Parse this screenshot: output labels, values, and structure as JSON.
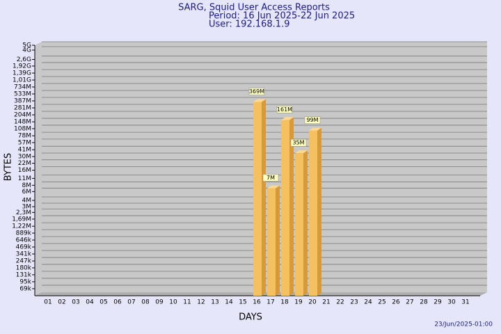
{
  "chart_data": {
    "type": "bar",
    "title": "SARG, Squid User Access Reports",
    "subtitle": "Period: 16 Jun 2025-22 Jun 2025",
    "user": "User: 192.168.1.9",
    "xlabel": "DAYS",
    "ylabel": "BYTES",
    "footer": "23/Jun/2025-01:00",
    "log_scale": true,
    "grid": true,
    "color": "#f5c060",
    "categories": [
      "01",
      "02",
      "03",
      "04",
      "05",
      "06",
      "07",
      "08",
      "09",
      "10",
      "11",
      "12",
      "13",
      "14",
      "15",
      "16",
      "17",
      "18",
      "19",
      "20",
      "21",
      "22",
      "23",
      "24",
      "25",
      "26",
      "27",
      "28",
      "29",
      "30",
      "31"
    ],
    "values": [
      null,
      null,
      null,
      null,
      null,
      null,
      null,
      null,
      null,
      null,
      null,
      null,
      null,
      null,
      null,
      369000000,
      7000000,
      161000000,
      35000000,
      99000000,
      null,
      null,
      null,
      null,
      null,
      null,
      null,
      null,
      null,
      null,
      null
    ],
    "value_labels": [
      null,
      null,
      null,
      null,
      null,
      null,
      null,
      null,
      null,
      null,
      null,
      null,
      null,
      null,
      null,
      "369M",
      "7M",
      "161M",
      "35M",
      "99M",
      null,
      null,
      null,
      null,
      null,
      null,
      null,
      null,
      null,
      null,
      null
    ],
    "ylim": [
      50000,
      5000000000
    ],
    "yticks": [
      {
        "value": 69000,
        "label": "69k"
      },
      {
        "value": 95000,
        "label": "95k"
      },
      {
        "value": 131000,
        "label": "131k"
      },
      {
        "value": 180000,
        "label": "180k"
      },
      {
        "value": 247000,
        "label": "247k"
      },
      {
        "value": 341000,
        "label": "341k"
      },
      {
        "value": 469000,
        "label": "469k"
      },
      {
        "value": 646000,
        "label": "646k"
      },
      {
        "value": 889000,
        "label": "889k"
      },
      {
        "value": 1220000,
        "label": "1,22M"
      },
      {
        "value": 1690000,
        "label": "1,69M"
      },
      {
        "value": 2300000,
        "label": "2,3M"
      },
      {
        "value": 3000000,
        "label": "3M"
      },
      {
        "value": 4000000,
        "label": "4M"
      },
      {
        "value": 6000000,
        "label": "6M"
      },
      {
        "value": 8000000,
        "label": "8M"
      },
      {
        "value": 11000000,
        "label": "11M"
      },
      {
        "value": 16000000,
        "label": "16M"
      },
      {
        "value": 22000000,
        "label": "22M"
      },
      {
        "value": 30000000,
        "label": "30M"
      },
      {
        "value": 41000000,
        "label": "41M"
      },
      {
        "value": 57000000,
        "label": "57M"
      },
      {
        "value": 78000000,
        "label": "78M"
      },
      {
        "value": 108000000,
        "label": "108M"
      },
      {
        "value": 148000000,
        "label": "148M"
      },
      {
        "value": 204000000,
        "label": "204M"
      },
      {
        "value": 281000000,
        "label": "281M"
      },
      {
        "value": 387000000,
        "label": "387M"
      },
      {
        "value": 533000000,
        "label": "533M"
      },
      {
        "value": 734000000,
        "label": "734M"
      },
      {
        "value": 1010000000,
        "label": "1,01G"
      },
      {
        "value": 1390000000,
        "label": "1,39G"
      },
      {
        "value": 1920000000,
        "label": "1,92G"
      },
      {
        "value": 2600000000,
        "label": "2,6G"
      },
      {
        "value": 4000000000,
        "label": "4G"
      },
      {
        "value": 5000000000,
        "label": "5G"
      }
    ]
  }
}
